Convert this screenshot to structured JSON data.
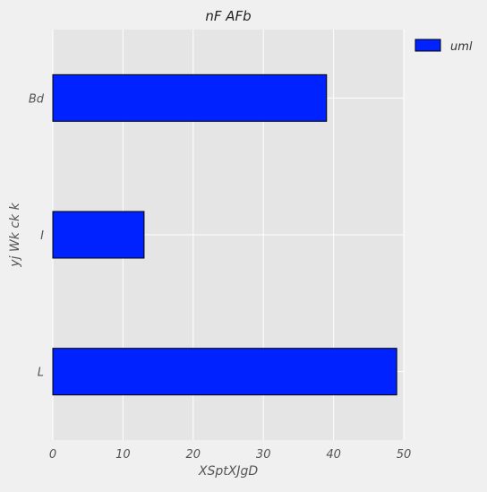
{
  "chart_data": {
    "type": "bar",
    "orientation": "horizontal",
    "title": "nF AFb",
    "xlabel": "XSptXJgD",
    "ylabel": "yj Wk ck k",
    "categories": [
      "Bd",
      "I",
      "L"
    ],
    "series": [
      {
        "name": "uml",
        "values": [
          39,
          13,
          49
        ]
      }
    ],
    "xlim": [
      0,
      50
    ],
    "xticks": [
      0,
      10,
      20,
      30,
      40,
      50
    ],
    "grid": true,
    "legend": "top-right",
    "colors": {
      "bar": "#0022ff",
      "bar_edge": "#000000",
      "plot_background": "#e5e5e5",
      "figure_background": "#f0f0f0",
      "grid": "#ffffff"
    }
  }
}
